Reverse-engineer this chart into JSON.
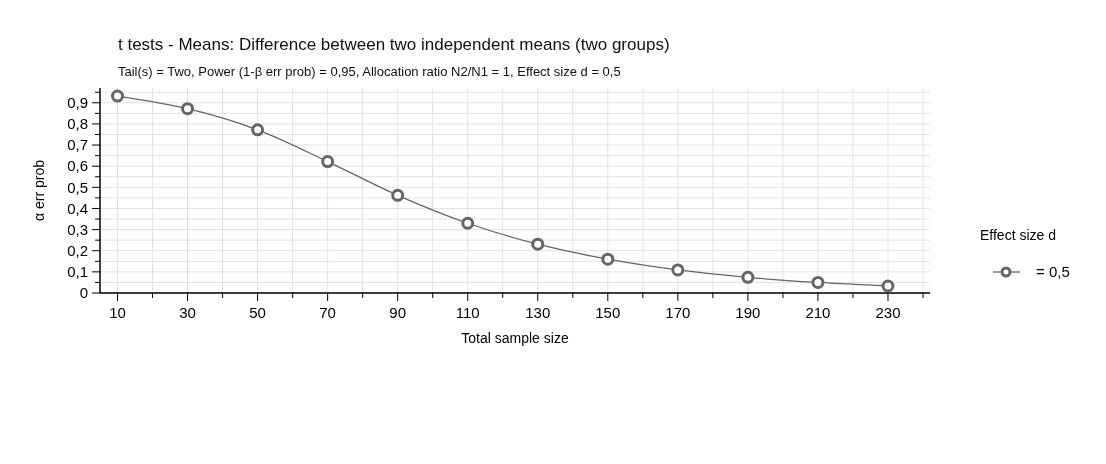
{
  "chart_data": {
    "type": "line",
    "title": "t tests - Means: Difference between two independent means (two groups)",
    "subtitle": "Tail(s) = Two, Power (1-β err prob) = 0,95, Allocation ratio N2/N1 = 1, Effect size d = 0,5",
    "xlabel": "Total sample size",
    "ylabel": "α err prob",
    "legend_title": "Effect size d",
    "x": [
      10,
      30,
      50,
      70,
      90,
      110,
      130,
      150,
      170,
      190,
      210,
      230
    ],
    "series": [
      {
        "name": "= 0,5",
        "color": "#666666",
        "values": [
          0.932,
          0.872,
          0.772,
          0.622,
          0.462,
          0.33,
          0.231,
          0.16,
          0.109,
          0.074,
          0.05,
          0.033
        ]
      }
    ],
    "xlim": [
      5,
      242
    ],
    "ylim": [
      0,
      0.97
    ],
    "xticks": [
      10,
      {
        "value": 20,
        "label": null
      },
      30,
      {
        "value": 40,
        "label": null
      },
      50,
      {
        "value": 60,
        "label": null
      },
      70,
      {
        "value": 80,
        "label": null
      },
      90,
      {
        "value": 100,
        "label": null
      },
      110,
      {
        "value": 120,
        "label": null
      },
      130,
      {
        "value": 140,
        "label": null
      },
      150,
      {
        "value": 160,
        "label": null
      },
      170,
      {
        "value": 180,
        "label": null
      },
      190,
      {
        "value": 200,
        "label": null
      },
      210,
      {
        "value": 220,
        "label": null
      },
      230,
      {
        "value": 240,
        "label": null
      }
    ],
    "yticks": [
      0,
      {
        "value": 0.05,
        "label": null
      },
      {
        "value": 0.1,
        "label": "0,1"
      },
      {
        "value": 0.15,
        "label": null
      },
      {
        "value": 0.2,
        "label": "0,2"
      },
      {
        "value": 0.25,
        "label": null
      },
      {
        "value": 0.3,
        "label": "0,3"
      },
      {
        "value": 0.35,
        "label": null
      },
      {
        "value": 0.4,
        "label": "0,4"
      },
      {
        "value": 0.45,
        "label": null
      },
      {
        "value": 0.5,
        "label": "0,5"
      },
      {
        "value": 0.55,
        "label": null
      },
      {
        "value": 0.6,
        "label": "0,6"
      },
      {
        "value": 0.65,
        "label": null
      },
      {
        "value": 0.7,
        "label": "0,7"
      },
      {
        "value": 0.75,
        "label": null
      },
      {
        "value": 0.8,
        "label": "0,8"
      },
      {
        "value": 0.85,
        "label": null
      },
      {
        "value": 0.9,
        "label": "0,9"
      },
      {
        "value": 0.95,
        "label": null
      }
    ],
    "grid": true,
    "legend": "right",
    "marker": "circle",
    "line_style": "solid"
  }
}
